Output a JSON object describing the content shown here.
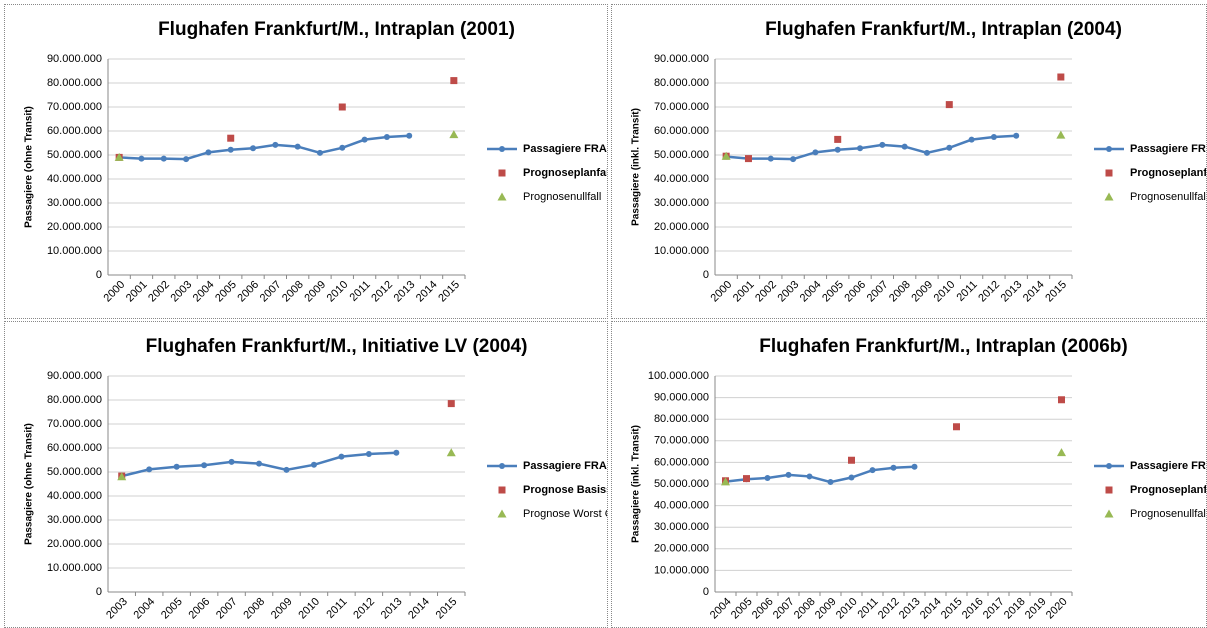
{
  "chart_data": [
    {
      "type": "line",
      "title": "Flughafen Frankfurt/M., Intraplan (2001)",
      "y_label": "Passagiere (ohne Transit)",
      "categories": [
        "2000",
        "2001",
        "2002",
        "2003",
        "2004",
        "2005",
        "2006",
        "2007",
        "2008",
        "2009",
        "2010",
        "2011",
        "2012",
        "2013",
        "2014",
        "2015"
      ],
      "series": [
        {
          "name": "Passagiere FRA",
          "color": "#4a7ebb",
          "marker": "circle",
          "line": true,
          "values": [
            49000000,
            48500000,
            48500000,
            48300000,
            51100000,
            52200000,
            52800000,
            54200000,
            53500000,
            50900000,
            53000000,
            56400000,
            57500000,
            58000000,
            null,
            null
          ]
        },
        {
          "name": "Prognoseplanfall",
          "color": "#be4b48",
          "marker": "square",
          "line": false,
          "values": [
            49000000,
            null,
            null,
            null,
            null,
            57000000,
            null,
            null,
            null,
            null,
            70000000,
            null,
            null,
            null,
            null,
            81000000
          ]
        },
        {
          "name": "Prognosenullfall",
          "color": "#98b954",
          "marker": "triangle",
          "line": false,
          "values": [
            49000000,
            null,
            null,
            null,
            null,
            null,
            null,
            null,
            null,
            null,
            null,
            null,
            null,
            null,
            null,
            58500000
          ]
        }
      ],
      "ylim": [
        0,
        90000000
      ],
      "yticks": [
        0,
        {
          "value": 10000000,
          "label": "10.000.000"
        },
        {
          "value": 20000000,
          "label": "20.000.000"
        },
        {
          "value": 30000000,
          "label": "30.000.000"
        },
        {
          "value": 40000000,
          "label": "40.000.000"
        },
        {
          "value": 50000000,
          "label": "50.000.000"
        },
        {
          "value": 60000000,
          "label": "60.000.000"
        },
        {
          "value": 70000000,
          "label": "70.000.000"
        },
        {
          "value": 80000000,
          "label": "80.000.000"
        },
        {
          "value": 90000000,
          "label": "90.000.000"
        }
      ],
      "grid": true,
      "legend": "right"
    },
    {
      "type": "line",
      "title": "Flughafen Frankfurt/M., Intraplan (2004)",
      "y_label": "Passagiere (inkl. Transit)",
      "categories": [
        "2000",
        "2001",
        "2002",
        "2003",
        "2004",
        "2005",
        "2006",
        "2007",
        "2008",
        "2009",
        "2010",
        "2011",
        "2012",
        "2013",
        "2014",
        "2015"
      ],
      "series": [
        {
          "name": "Passagiere FRA",
          "color": "#4a7ebb",
          "marker": "circle",
          "line": true,
          "values": [
            49300000,
            48500000,
            48500000,
            48300000,
            51100000,
            52200000,
            52800000,
            54200000,
            53500000,
            50900000,
            53000000,
            56400000,
            57500000,
            58000000,
            null,
            null
          ]
        },
        {
          "name": "Prognoseplanfall",
          "color": "#be4b48",
          "marker": "square",
          "line": false,
          "values": [
            49500000,
            48500000,
            null,
            null,
            null,
            56500000,
            null,
            null,
            null,
            null,
            71000000,
            null,
            null,
            null,
            null,
            82500000
          ]
        },
        {
          "name": "Prognosenullfall",
          "color": "#98b954",
          "marker": "triangle",
          "line": false,
          "values": [
            49500000,
            null,
            null,
            null,
            null,
            null,
            null,
            null,
            null,
            null,
            null,
            null,
            null,
            null,
            null,
            58300000
          ]
        }
      ],
      "ylim": [
        0,
        90000000
      ],
      "yticks": [
        0,
        {
          "value": 10000000,
          "label": "10.000.000"
        },
        {
          "value": 20000000,
          "label": "20.000.000"
        },
        {
          "value": 30000000,
          "label": "30.000.000"
        },
        {
          "value": 40000000,
          "label": "40.000.000"
        },
        {
          "value": 50000000,
          "label": "50.000.000"
        },
        {
          "value": 60000000,
          "label": "60.000.000"
        },
        {
          "value": 70000000,
          "label": "70.000.000"
        },
        {
          "value": 80000000,
          "label": "80.000.000"
        },
        {
          "value": 90000000,
          "label": "90.000.000"
        }
      ],
      "grid": true,
      "legend": "right"
    },
    {
      "type": "line",
      "title": "Flughafen Frankfurt/M., Initiative LV (2004)",
      "y_label": "Passagiere (ohne Transit)",
      "categories": [
        "2003",
        "2004",
        "2005",
        "2006",
        "2007",
        "2008",
        "2009",
        "2010",
        "2011",
        "2012",
        "2013",
        "2014",
        "2015"
      ],
      "series": [
        {
          "name": "Passagiere FRA",
          "color": "#4a7ebb",
          "marker": "circle",
          "line": true,
          "values": [
            48300000,
            51100000,
            52200000,
            52800000,
            54200000,
            53500000,
            50900000,
            53000000,
            56400000,
            57500000,
            58000000,
            null,
            null
          ]
        },
        {
          "name": "Prognose Basisszenario",
          "color": "#be4b48",
          "marker": "square",
          "line": false,
          "values": [
            48300000,
            null,
            null,
            null,
            null,
            null,
            null,
            null,
            null,
            null,
            null,
            null,
            78500000
          ]
        },
        {
          "name": "Prognose Worst Case",
          "color": "#98b954",
          "marker": "triangle",
          "line": false,
          "values": [
            48000000,
            null,
            null,
            null,
            null,
            null,
            null,
            null,
            null,
            null,
            null,
            null,
            58000000
          ]
        }
      ],
      "ylim": [
        0,
        90000000
      ],
      "yticks": [
        0,
        {
          "value": 10000000,
          "label": "10.000.000"
        },
        {
          "value": 20000000,
          "label": "20.000.000"
        },
        {
          "value": 30000000,
          "label": "30.000.000"
        },
        {
          "value": 40000000,
          "label": "40.000.000"
        },
        {
          "value": 50000000,
          "label": "50.000.000"
        },
        {
          "value": 60000000,
          "label": "60.000.000"
        },
        {
          "value": 70000000,
          "label": "70.000.000"
        },
        {
          "value": 80000000,
          "label": "80.000.000"
        },
        {
          "value": 90000000,
          "label": "90.000.000"
        }
      ],
      "grid": true,
      "legend": "right"
    },
    {
      "type": "line",
      "title": "Flughafen Frankfurt/M., Intraplan (2006b)",
      "y_label": "Passagiere (inkl. Transit)",
      "categories": [
        "2004",
        "2005",
        "2006",
        "2007",
        "2008",
        "2009",
        "2010",
        "2011",
        "2012",
        "2013",
        "2014",
        "2015",
        "2016",
        "2017",
        "2018",
        "2019",
        "2020"
      ],
      "series": [
        {
          "name": "Passagiere FRA",
          "color": "#4a7ebb",
          "marker": "circle",
          "line": true,
          "values": [
            51100000,
            52200000,
            52800000,
            54200000,
            53500000,
            50900000,
            53000000,
            56400000,
            57500000,
            58000000,
            null,
            null,
            null,
            null,
            null,
            null,
            null
          ]
        },
        {
          "name": "Prognoseplanfall",
          "color": "#be4b48",
          "marker": "square",
          "line": false,
          "values": [
            51500000,
            52500000,
            null,
            null,
            null,
            null,
            61000000,
            null,
            null,
            null,
            null,
            76500000,
            null,
            null,
            null,
            null,
            89000000
          ]
        },
        {
          "name": "Prognosenullfall",
          "color": "#98b954",
          "marker": "triangle",
          "line": false,
          "values": [
            51000000,
            null,
            null,
            null,
            null,
            null,
            null,
            null,
            null,
            null,
            null,
            null,
            null,
            null,
            null,
            null,
            64500000
          ]
        }
      ],
      "ylim": [
        0,
        100000000
      ],
      "yticks": [
        0,
        {
          "value": 10000000,
          "label": "10.000.000"
        },
        {
          "value": 20000000,
          "label": "20.000.000"
        },
        {
          "value": 30000000,
          "label": "30.000.000"
        },
        {
          "value": 40000000,
          "label": "40.000.000"
        },
        {
          "value": 50000000,
          "label": "50.000.000"
        },
        {
          "value": 60000000,
          "label": "60.000.000"
        },
        {
          "value": 70000000,
          "label": "70.000.000"
        },
        {
          "value": 80000000,
          "label": "80.000.000"
        },
        {
          "value": 90000000,
          "label": "90.000.000"
        },
        {
          "value": 100000000,
          "label": "100.000.000"
        }
      ],
      "grid": true,
      "legend": "right"
    }
  ]
}
